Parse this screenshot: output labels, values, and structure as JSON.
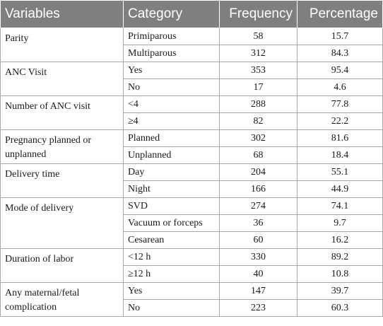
{
  "headers": [
    "Variables",
    "Category",
    "Frequency",
    "Percentage"
  ],
  "groups": [
    {
      "variable": "Parity",
      "rows": [
        {
          "category": "Primiparous",
          "frequency": "58",
          "percentage": "15.7"
        },
        {
          "category": "Multiparous",
          "frequency": "312",
          "percentage": "84.3"
        }
      ]
    },
    {
      "variable": "ANC Visit",
      "rows": [
        {
          "category": "Yes",
          "frequency": "353",
          "percentage": "95.4"
        },
        {
          "category": "No",
          "frequency": "17",
          "percentage": "4.6"
        }
      ]
    },
    {
      "variable": "Number of ANC visit",
      "rows": [
        {
          "category": "<4",
          "frequency": "288",
          "percentage": "77.8"
        },
        {
          "category": "≥4",
          "frequency": "82",
          "percentage": "22.2"
        }
      ]
    },
    {
      "variable": "Pregnancy planned or unplanned",
      "rows": [
        {
          "category": "Planned",
          "frequency": "302",
          "percentage": "81.6"
        },
        {
          "category": "Unplanned",
          "frequency": "68",
          "percentage": "18.4"
        }
      ]
    },
    {
      "variable": "Delivery time",
      "rows": [
        {
          "category": "Day",
          "frequency": "204",
          "percentage": "55.1"
        },
        {
          "category": "Night",
          "frequency": "166",
          "percentage": "44.9"
        }
      ]
    },
    {
      "variable": "Mode of delivery",
      "rows": [
        {
          "category": "SVD",
          "frequency": "274",
          "percentage": "74.1"
        },
        {
          "category": "Vacuum or forceps",
          "frequency": "36",
          "percentage": "9.7"
        },
        {
          "category": "Cesarean",
          "frequency": "60",
          "percentage": "16.2"
        }
      ]
    },
    {
      "variable": "Duration of labor",
      "rows": [
        {
          "category": "<12 h",
          "frequency": "330",
          "percentage": "89.2"
        },
        {
          "category": "≥12 h",
          "frequency": "40",
          "percentage": "10.8"
        }
      ]
    },
    {
      "variable": "Any maternal/fetal complication",
      "rows": [
        {
          "category": "Yes",
          "frequency": "147",
          "percentage": "39.7"
        },
        {
          "category": "No",
          "frequency": "223",
          "percentage": "60.3"
        }
      ]
    }
  ]
}
